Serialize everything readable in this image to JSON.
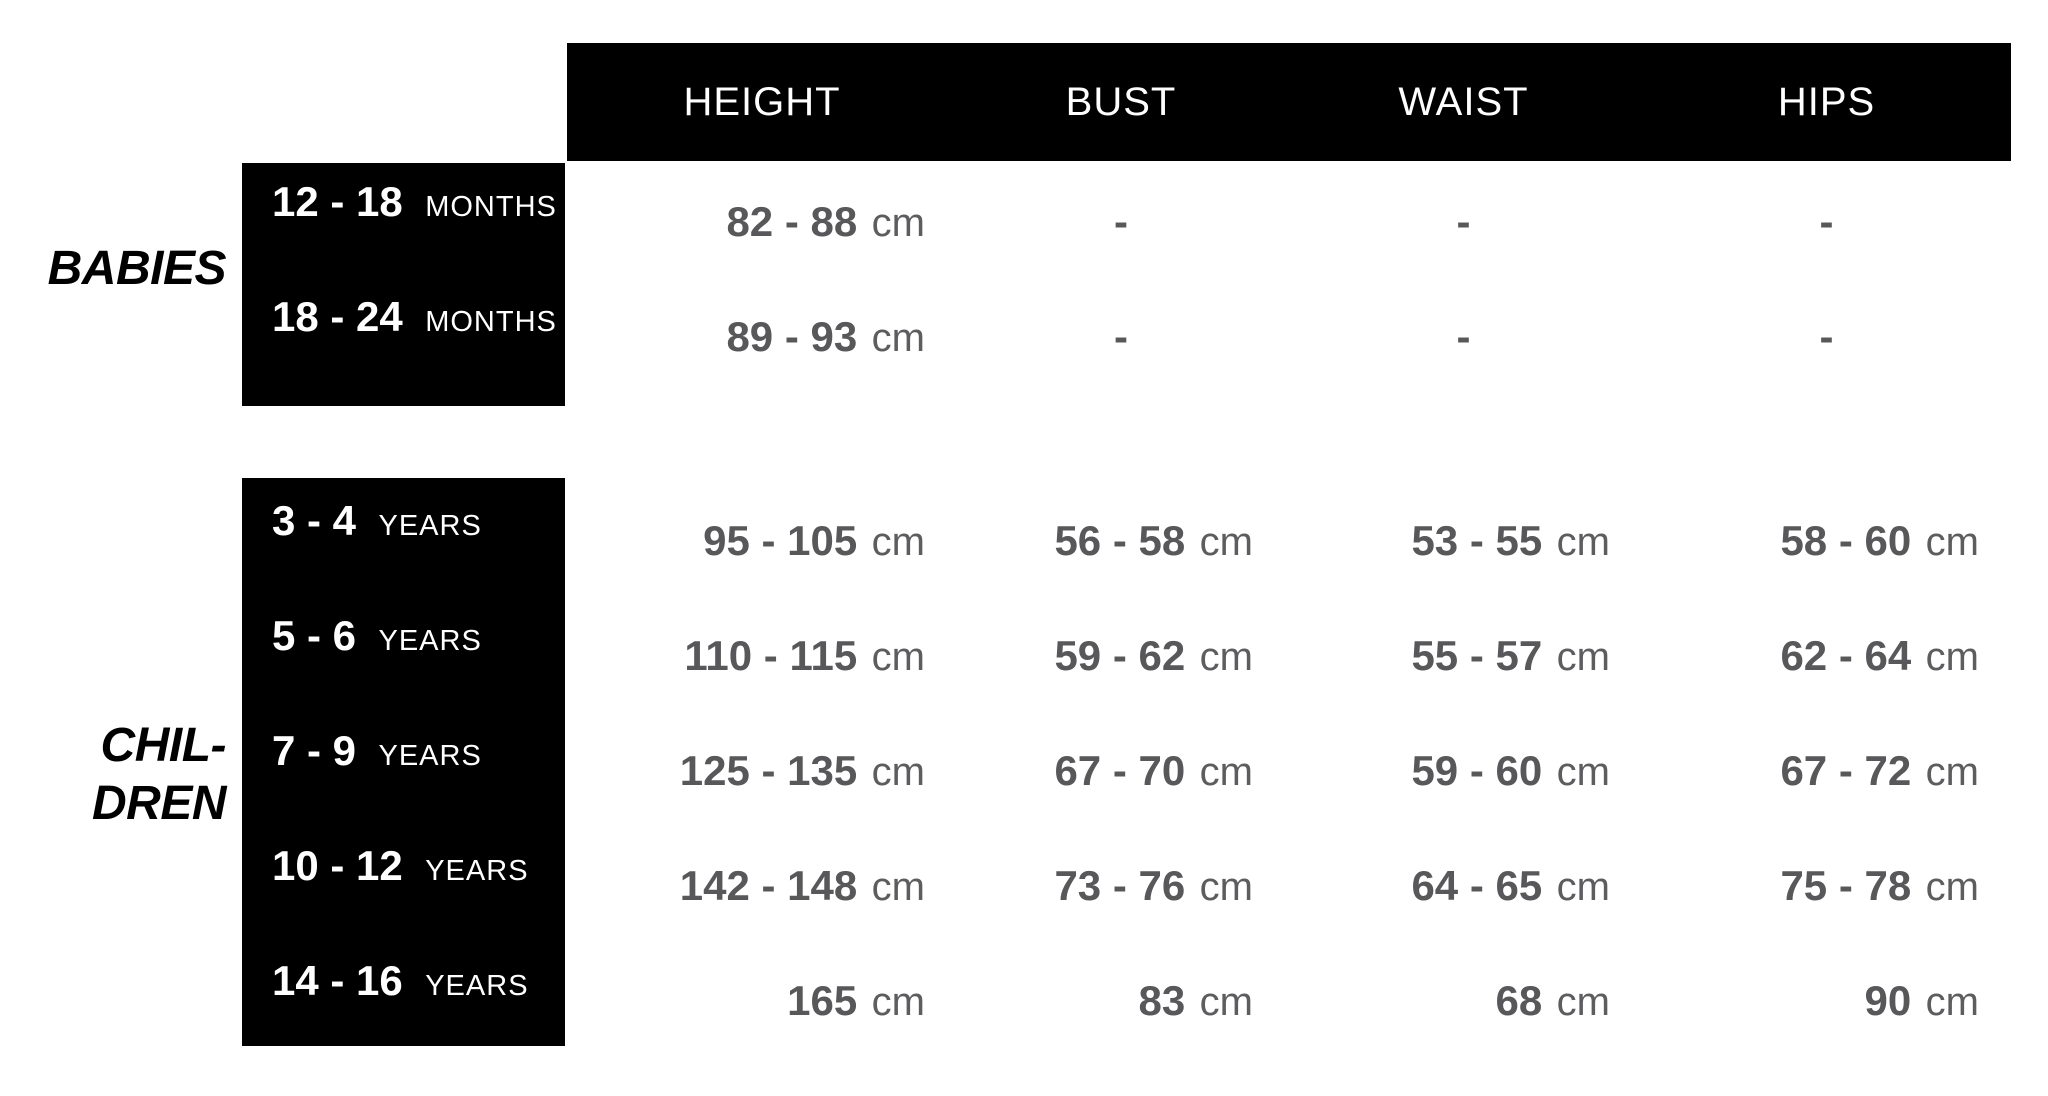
{
  "colors": {
    "bar_black": "#000000",
    "value_text_gray": "#58585a",
    "header_text_white": "#ffffff",
    "category_text_black": "#000000"
  },
  "chart_data": {
    "type": "table",
    "unit": "cm",
    "column_headers": [
      "HEIGHT",
      "BUST",
      "WAIST",
      "HIPS"
    ],
    "sections": [
      {
        "label": "BABIES",
        "label_lines": [
          "BABIES"
        ],
        "rows": [
          {
            "size": "12 - 18",
            "size_unit": "MONTHS",
            "values": {
              "height": "82 - 88",
              "bust": "-",
              "waist": "-",
              "hips": "-"
            }
          },
          {
            "size": "18 - 24",
            "size_unit": "MONTHS",
            "values": {
              "height": "89 - 93",
              "bust": "-",
              "waist": "-",
              "hips": "-"
            }
          }
        ]
      },
      {
        "label": "CHILDREN",
        "label_lines": [
          "CHIL-",
          "DREN"
        ],
        "rows": [
          {
            "size": "3 - 4",
            "size_unit": "YEARS",
            "values": {
              "height": "95 - 105",
              "bust": "56 - 58",
              "waist": "53 - 55",
              "hips": "58 - 60"
            }
          },
          {
            "size": "5 - 6",
            "size_unit": "YEARS",
            "values": {
              "height": "110 - 115",
              "bust": "59 - 62",
              "waist": "55 - 57",
              "hips": "62 - 64"
            }
          },
          {
            "size": "7 - 9",
            "size_unit": "YEARS",
            "values": {
              "height": "125 - 135",
              "bust": "67 - 70",
              "waist": "59 - 60",
              "hips": "67 - 72"
            }
          },
          {
            "size": "10 - 12",
            "size_unit": "YEARS",
            "values": {
              "height": "142 - 148",
              "bust": "73 - 76",
              "waist": "64 - 65",
              "hips": "75 - 78"
            }
          },
          {
            "size": "14 - 16",
            "size_unit": "YEARS",
            "values": {
              "height": "165",
              "bust": "83",
              "waist": "68",
              "hips": "90"
            }
          }
        ]
      }
    ]
  }
}
